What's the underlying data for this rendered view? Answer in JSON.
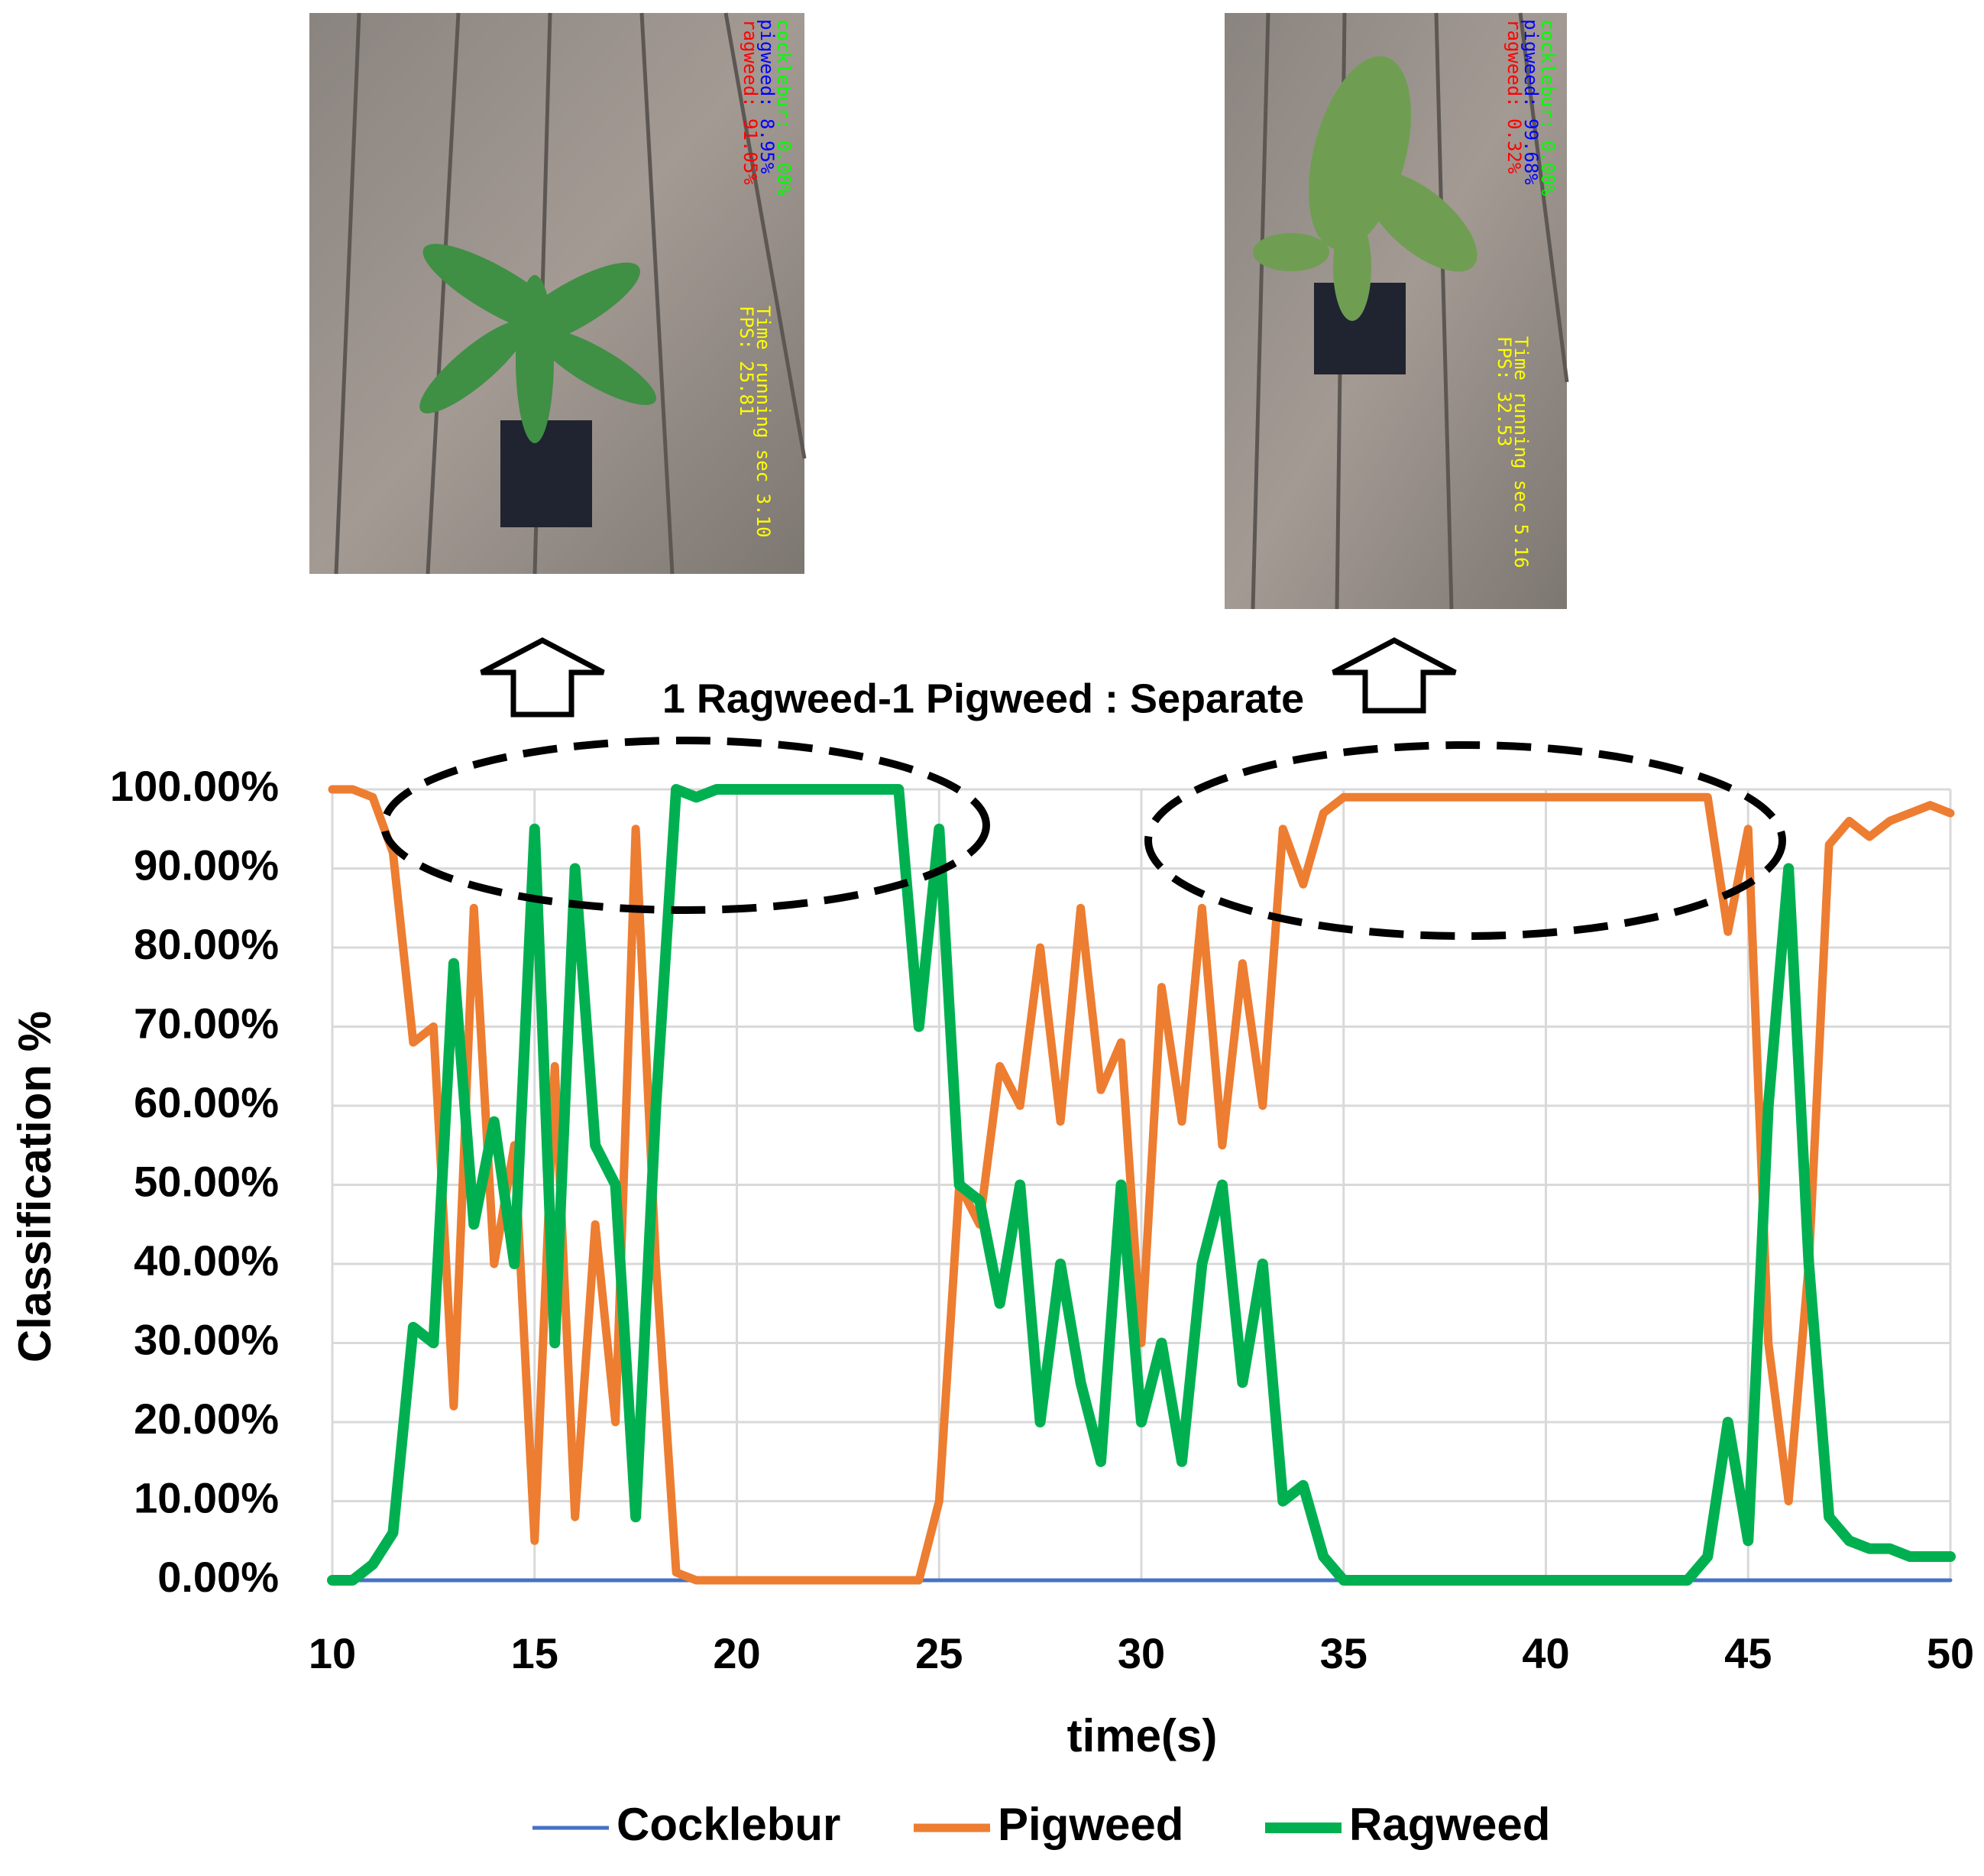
{
  "chart_data": {
    "type": "line",
    "annotation": "1 Ragweed-1 Pigweed : Separate",
    "xlabel": "time(s)",
    "ylabel": "Classification %",
    "x": [
      10,
      10.5,
      11,
      11.5,
      12,
      12.5,
      13,
      13.5,
      14,
      14.5,
      15,
      15.5,
      16,
      16.5,
      17,
      17.5,
      18,
      18.5,
      19,
      19.5,
      20,
      20.5,
      21,
      21.5,
      22,
      22.5,
      23,
      23.5,
      24,
      24.5,
      25,
      25.5,
      26,
      26.5,
      27,
      27.5,
      28,
      28.5,
      29,
      29.5,
      30,
      30.5,
      31,
      31.5,
      32,
      32.5,
      33,
      33.5,
      34,
      34.5,
      35,
      35.5,
      36,
      36.5,
      37,
      37.5,
      38,
      38.5,
      39,
      39.5,
      40,
      40.5,
      41,
      41.5,
      42,
      42.5,
      43,
      43.5,
      44,
      44.5,
      45,
      45.5,
      46,
      46.5,
      47,
      47.5,
      48,
      48.5,
      49,
      49.5,
      50
    ],
    "series": [
      {
        "name": "Cocklebur",
        "color": "#4472c4",
        "width": 5,
        "values": [
          0,
          0,
          0,
          0,
          0,
          0,
          0,
          0,
          0,
          0,
          0,
          0,
          0,
          0,
          0,
          0,
          0,
          0,
          0,
          0,
          0,
          0,
          0,
          0,
          0,
          0,
          0,
          0,
          0,
          0,
          0,
          0,
          0,
          0,
          0,
          0,
          0,
          0,
          0,
          0,
          0,
          0,
          0,
          0,
          0,
          0,
          0,
          0,
          0,
          0,
          0,
          0,
          0,
          0,
          0,
          0,
          0,
          0,
          0,
          0,
          0,
          0,
          0,
          0,
          0,
          0,
          0,
          0,
          0,
          0,
          0,
          0,
          0,
          0,
          0,
          0,
          0,
          0,
          0,
          0,
          0
        ]
      },
      {
        "name": "Pigweed",
        "color": "#ed7d31",
        "width": 11,
        "values": [
          100,
          100,
          99,
          92,
          68,
          70,
          22,
          85,
          40,
          55,
          5,
          65,
          8,
          45,
          20,
          95,
          40,
          1,
          0,
          0,
          0,
          0,
          0,
          0,
          0,
          0,
          0,
          0,
          0,
          0,
          10,
          50,
          45,
          65,
          60,
          80,
          58,
          85,
          62,
          68,
          30,
          75,
          58,
          85,
          55,
          78,
          60,
          95,
          88,
          97,
          99,
          99,
          99,
          99,
          99,
          99,
          99,
          99,
          99,
          99,
          99,
          99,
          99,
          99,
          99,
          99,
          99,
          99,
          99,
          82,
          95,
          30,
          10,
          40,
          93,
          96,
          94,
          96,
          97,
          98,
          97
        ]
      },
      {
        "name": "Ragweed",
        "color": "#00b050",
        "width": 14,
        "values": [
          0,
          0,
          2,
          6,
          32,
          30,
          78,
          45,
          58,
          40,
          95,
          30,
          90,
          55,
          50,
          8,
          60,
          100,
          99,
          100,
          100,
          100,
          100,
          100,
          100,
          100,
          100,
          100,
          100,
          70,
          95,
          50,
          48,
          35,
          50,
          20,
          40,
          25,
          15,
          50,
          20,
          30,
          15,
          40,
          50,
          25,
          40,
          10,
          12,
          3,
          0,
          0,
          0,
          0,
          0,
          0,
          0,
          0,
          0,
          0,
          0,
          0,
          0,
          0,
          0,
          0,
          0,
          0,
          3,
          20,
          5,
          60,
          90,
          40,
          8,
          5,
          4,
          4,
          3,
          3,
          3
        ]
      }
    ],
    "xlim": [
      10,
      50
    ],
    "xticks": [
      10,
      15,
      20,
      25,
      30,
      35,
      40,
      45,
      50
    ],
    "ylim": [
      0,
      100
    ],
    "yticks": [
      {
        "value": 0,
        "label": "0.00%"
      },
      {
        "value": 10,
        "label": "10.00%"
      },
      {
        "value": 20,
        "label": "20.00%"
      },
      {
        "value": 30,
        "label": "30.00%"
      },
      {
        "value": 40,
        "label": "40.00%"
      },
      {
        "value": 50,
        "label": "50.00%"
      },
      {
        "value": 60,
        "label": "60.00%"
      },
      {
        "value": 70,
        "label": "70.00%"
      },
      {
        "value": 80,
        "label": "80.00%"
      },
      {
        "value": 90,
        "label": "90.00%"
      },
      {
        "value": 100,
        "label": "100.00%"
      }
    ],
    "grid": true,
    "legend": "bottom"
  },
  "photos": [
    {
      "overlay": [
        {
          "text": "cocklebur: 0.00%",
          "color": "#00ff00"
        },
        {
          "text": "pigweed: 8.95%",
          "color": "#0000ff"
        },
        {
          "text": "ragweed: 91.05%",
          "color": "#ff0000"
        }
      ],
      "status": [
        {
          "text": "Time running sec 3.10",
          "color": "#ffff00"
        },
        {
          "text": "FPS: 25.81",
          "color": "#ffff00"
        }
      ]
    },
    {
      "overlay": [
        {
          "text": "cocklebur: 0.00%",
          "color": "#00ff00"
        },
        {
          "text": "pigweed: 99.68%",
          "color": "#0000ff"
        },
        {
          "text": "ragweed: 0.32%",
          "color": "#ff0000"
        }
      ],
      "status": [
        {
          "text": "Time running sec 5.16",
          "color": "#ffff00"
        },
        {
          "text": "FPS: 32.53",
          "color": "#ffff00"
        }
      ]
    }
  ]
}
